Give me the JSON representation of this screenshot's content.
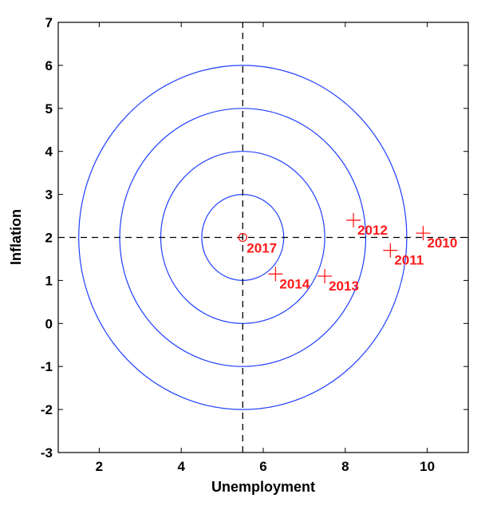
{
  "chart_data": {
    "type": "scatter",
    "xlabel": "Unemployment",
    "ylabel": "Inflation",
    "xlim": [
      1,
      11
    ],
    "ylim": [
      -3,
      7
    ],
    "xticks": [
      "2",
      "4",
      "6",
      "8",
      "10"
    ],
    "yticks": [
      "-3",
      "-2",
      "-1",
      "0",
      "1",
      "2",
      "3",
      "4",
      "5",
      "6",
      "7"
    ],
    "grid": false,
    "target": {
      "x": 5.5,
      "y": 2,
      "label": "2017"
    },
    "circles": [
      {
        "cx": 5.5,
        "cy": 2,
        "r": 1
      },
      {
        "cx": 5.5,
        "cy": 2,
        "r": 2
      },
      {
        "cx": 5.5,
        "cy": 2,
        "r": 3
      },
      {
        "cx": 5.5,
        "cy": 2,
        "r": 4
      }
    ],
    "points": [
      {
        "label": "2010",
        "x": 9.9,
        "y": 2.1
      },
      {
        "label": "2011",
        "x": 9.1,
        "y": 1.7
      },
      {
        "label": "2012",
        "x": 8.2,
        "y": 2.4
      },
      {
        "label": "2013",
        "x": 7.5,
        "y": 1.1
      },
      {
        "label": "2014",
        "x": 6.3,
        "y": 1.15
      }
    ],
    "colors": {
      "circles": "#1f3fff",
      "points": "#ff1a1a",
      "reference_lines": "#000000"
    }
  }
}
